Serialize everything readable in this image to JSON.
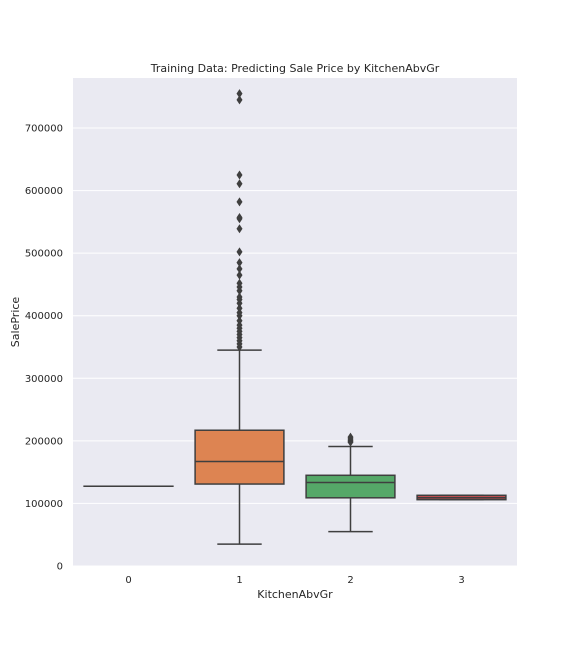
{
  "chart_data": {
    "type": "box",
    "title": "Training Data: Predicting Sale Price by KitchenAbvGr",
    "xlabel": "KitchenAbvGr",
    "ylabel": "SalePrice",
    "ylim": [
      0,
      780000
    ],
    "yticks": [
      0,
      100000,
      200000,
      300000,
      400000,
      500000,
      600000,
      700000
    ],
    "yticklabels": [
      "0",
      "100000",
      "200000",
      "300000",
      "400000",
      "500000",
      "600000",
      "700000"
    ],
    "grid": true,
    "categories": [
      "0",
      "1",
      "2",
      "3"
    ],
    "boxes": [
      {
        "category": "0",
        "whisker_low": 127500,
        "q1": 127500,
        "median": 127500,
        "q3": 127500,
        "whisker_high": 127500,
        "outliers": [],
        "color": "#4c72b0"
      },
      {
        "category": "1",
        "whisker_low": 34900,
        "q1": 131000,
        "median": 167000,
        "q3": 217000,
        "whisker_high": 345000,
        "outliers": [
          350000,
          355000,
          360000,
          365000,
          370000,
          375000,
          380000,
          385000,
          392000,
          400000,
          405000,
          412000,
          420000,
          426000,
          430000,
          440000,
          446000,
          452000,
          465000,
          475000,
          485000,
          502000,
          539000,
          555000,
          557000,
          582000,
          611000,
          625000,
          745000,
          755000
        ],
        "color": "#dd8452"
      },
      {
        "category": "2",
        "whisker_low": 55000,
        "q1": 109000,
        "median": 133500,
        "q3": 145000,
        "whisker_high": 191000,
        "outliers": [
          198000,
          200000,
          203000,
          206000
        ],
        "color": "#55a868"
      },
      {
        "category": "3",
        "whisker_low": 106000,
        "q1": 106000,
        "median": 109000,
        "q3": 113000,
        "whisker_high": 113000,
        "outliers": [],
        "color": "#c44e52"
      }
    ]
  }
}
